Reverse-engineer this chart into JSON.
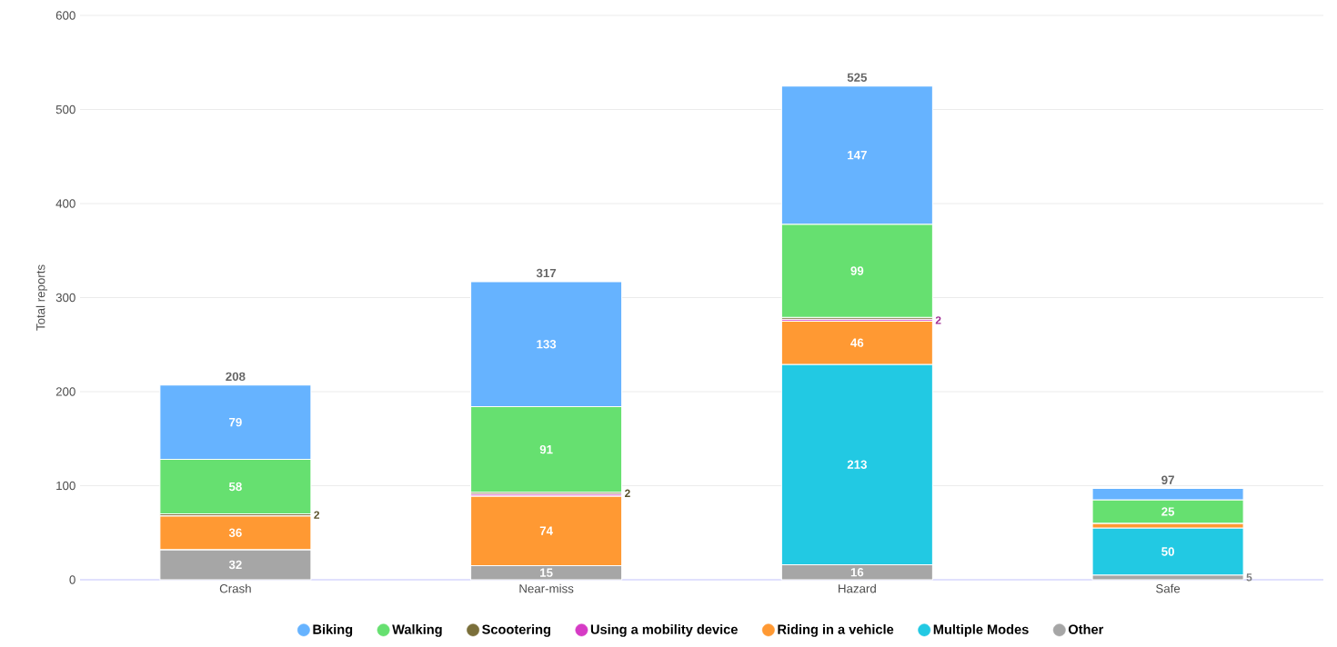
{
  "chart_data": {
    "type": "bar",
    "stacked": true,
    "ylabel": "Total reports",
    "categories": [
      "Crash",
      "Near-miss",
      "Hazard",
      "Safe"
    ],
    "ylim": [
      0,
      600
    ],
    "yticks": [
      0,
      100,
      200,
      300,
      400,
      500,
      600
    ],
    "grid": "y",
    "legend": "bottom",
    "series": [
      {
        "name": "Other",
        "color": "#a6a6a6",
        "values": [
          32,
          15,
          16,
          5
        ],
        "value_labels": [
          "32",
          "15",
          "16",
          "5"
        ]
      },
      {
        "name": "Multiple Modes",
        "color": "#22c9e3",
        "values": [
          null,
          null,
          213,
          50
        ],
        "value_labels": [
          null,
          null,
          "213",
          "50"
        ]
      },
      {
        "name": "Riding in a vehicle",
        "color": "#ff9933",
        "values": [
          36,
          74,
          46,
          5
        ],
        "value_labels": [
          "36",
          "74",
          "46",
          null
        ]
      },
      {
        "name": "Using a mobility device",
        "color": "#d63bc5",
        "values": [
          null,
          2,
          2,
          null
        ],
        "value_labels": [
          null,
          null,
          "2",
          null
        ]
      },
      {
        "name": "Scootering",
        "color": "#7a6f3a",
        "values": [
          2,
          2,
          2,
          null
        ],
        "value_labels": [
          "2",
          "2",
          null,
          null
        ]
      },
      {
        "name": "Walking",
        "color": "#66e070",
        "values": [
          58,
          91,
          99,
          25
        ],
        "value_labels": [
          "58",
          "91",
          "99",
          "25"
        ]
      },
      {
        "name": "Biking",
        "color": "#66b3ff",
        "values": [
          79,
          133,
          147,
          12
        ],
        "value_labels": [
          "79",
          "133",
          "147",
          null
        ]
      }
    ],
    "totals": [
      "208",
      "317",
      "525",
      "97"
    ]
  }
}
